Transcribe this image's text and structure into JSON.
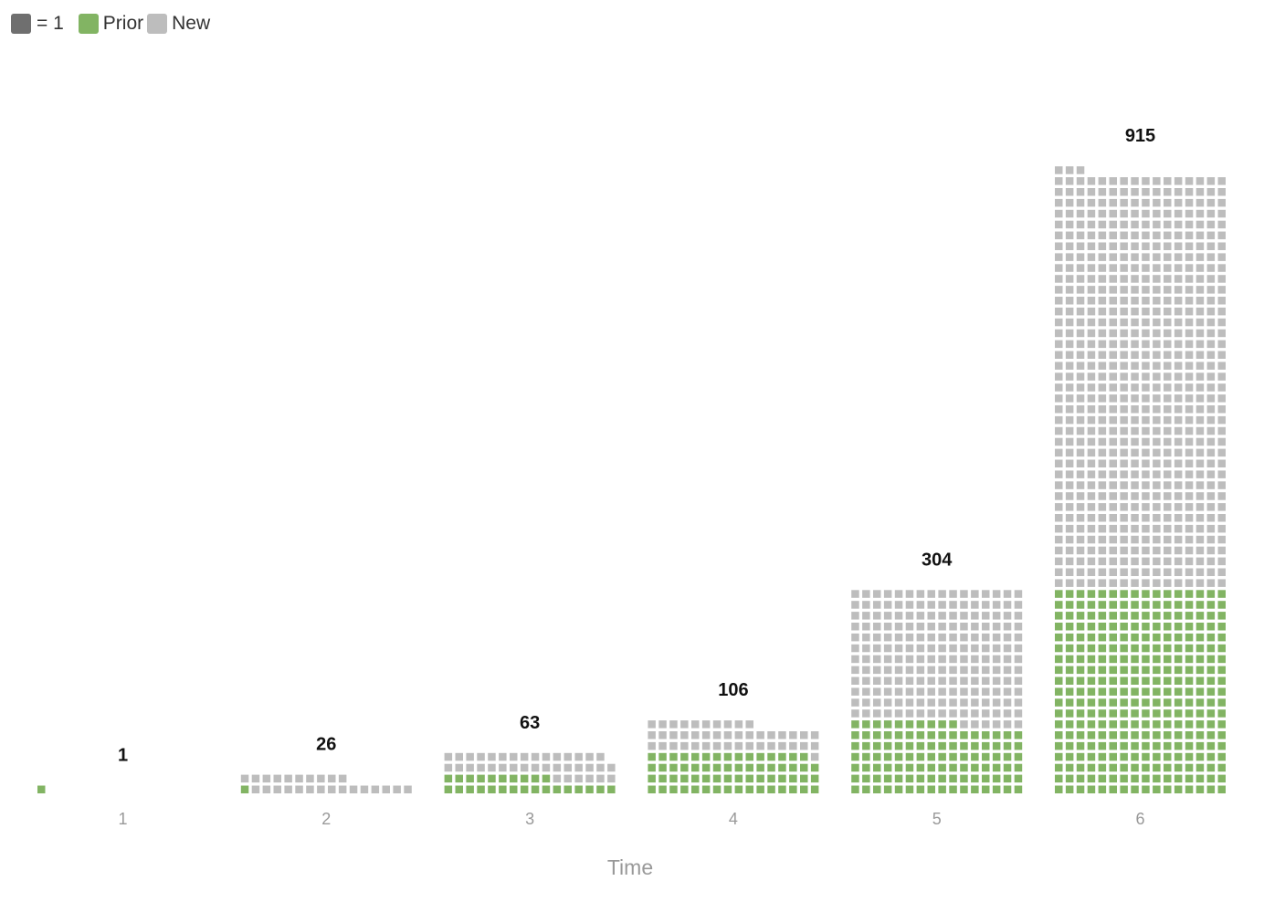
{
  "legend": {
    "unit_label": "= 1",
    "prior_label": "Prior",
    "new_label": "New"
  },
  "colors": {
    "unit": "#6f6f6f",
    "prior": "#82b463",
    "new": "#bdbdbd"
  },
  "chart_data": {
    "type": "waffle-bar",
    "xlabel": "Time",
    "categories": [
      "1",
      "2",
      "3",
      "4",
      "5",
      "6"
    ],
    "unit_value": 1,
    "totals": [
      1,
      26,
      63,
      106,
      304,
      915
    ],
    "series": [
      {
        "name": "Prior",
        "values": [
          1,
          1,
          26,
          63,
          106,
          304
        ]
      },
      {
        "name": "New",
        "values": [
          0,
          25,
          37,
          43,
          198,
          611
        ]
      }
    ]
  }
}
